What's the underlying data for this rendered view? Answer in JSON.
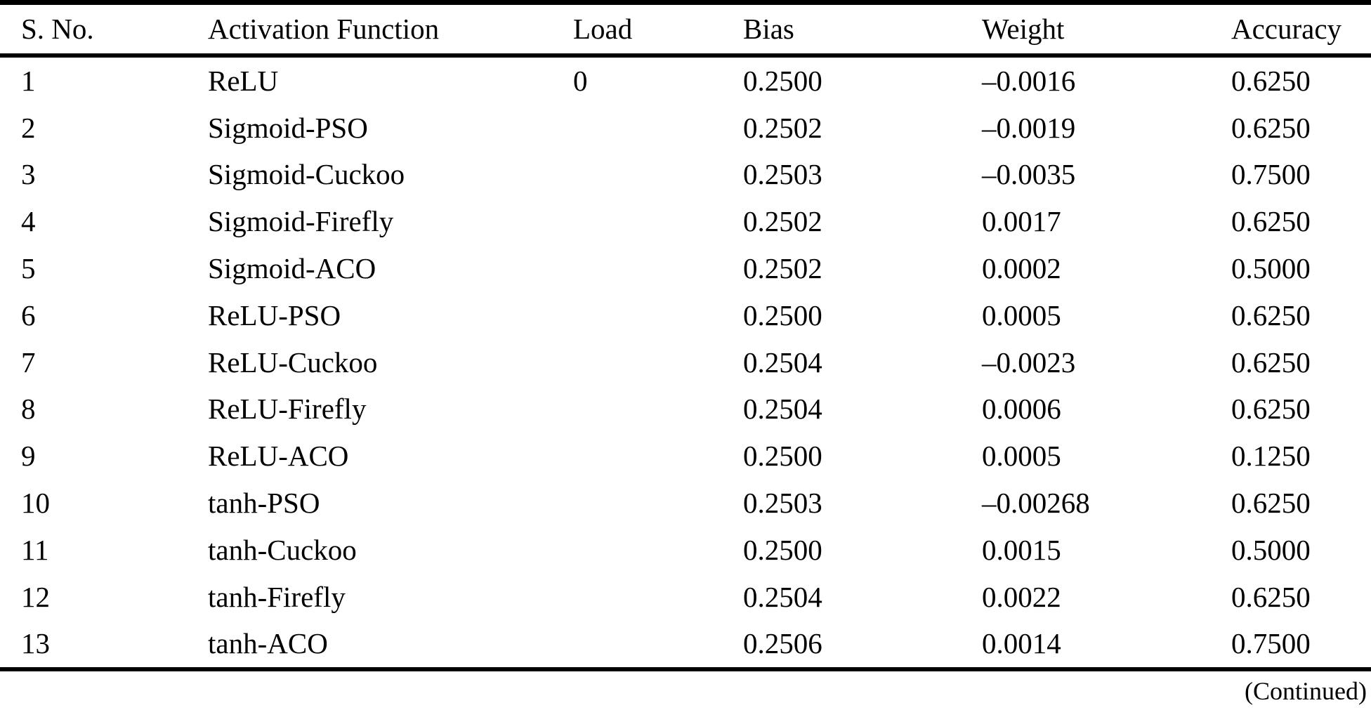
{
  "table": {
    "columns": [
      {
        "key": "sno",
        "label": "S. No."
      },
      {
        "key": "activation",
        "label": "Activation Function"
      },
      {
        "key": "load",
        "label": "Load"
      },
      {
        "key": "bias",
        "label": "Bias"
      },
      {
        "key": "weight",
        "label": "Weight"
      },
      {
        "key": "accuracy",
        "label": "Accuracy"
      }
    ],
    "rows": [
      [
        "1",
        "ReLU",
        "0",
        "0.2500",
        "–0.0016",
        "0.6250"
      ],
      [
        "2",
        "Sigmoid-PSO",
        "",
        "0.2502",
        "–0.0019",
        "0.6250"
      ],
      [
        "3",
        "Sigmoid-Cuckoo",
        "",
        "0.2503",
        "–0.0035",
        "0.7500"
      ],
      [
        "4",
        "Sigmoid-Firefly",
        "",
        "0.2502",
        "0.0017",
        "0.6250"
      ],
      [
        "5",
        "Sigmoid-ACO",
        "",
        "0.2502",
        "0.0002",
        "0.5000"
      ],
      [
        "6",
        "ReLU-PSO",
        "",
        "0.2500",
        "0.0005",
        "0.6250"
      ],
      [
        "7",
        "ReLU-Cuckoo",
        "",
        "0.2504",
        "–0.0023",
        "0.6250"
      ],
      [
        "8",
        "ReLU-Firefly",
        "",
        "0.2504",
        "0.0006",
        "0.6250"
      ],
      [
        "9",
        "ReLU-ACO",
        "",
        "0.2500",
        "0.0005",
        "0.1250"
      ],
      [
        "10",
        "tanh-PSO",
        "",
        "0.2503",
        "–0.00268",
        "0.6250"
      ],
      [
        "11",
        "tanh-Cuckoo",
        "",
        "0.2500",
        "0.0015",
        "0.5000"
      ],
      [
        "12",
        "tanh-Firefly",
        "",
        "0.2504",
        "0.0022",
        "0.6250"
      ],
      [
        "13",
        "tanh-ACO",
        "",
        "0.2506",
        "0.0014",
        "0.7500"
      ]
    ],
    "footer_note": "(Continued)",
    "colors": {
      "text": "#000000",
      "background": "#ffffff",
      "rule": "#000000"
    }
  }
}
